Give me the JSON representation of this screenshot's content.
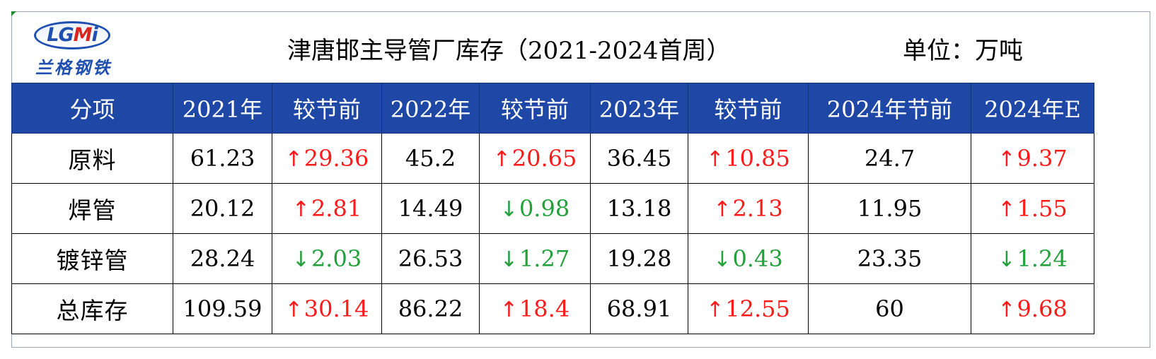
{
  "logo": {
    "letters_a": "LG",
    "letters_b": "M",
    "letters_c": "i",
    "cn": "兰格钢铁"
  },
  "title": "津唐邯主导管厂库存（2021-2024首周）",
  "unit": "单位：万吨",
  "colors": {
    "header_bg": "#1f48a6",
    "up": "#ff1a1a",
    "down": "#22a03a"
  },
  "headers": [
    "分项",
    "2021年",
    "较节前",
    "2022年",
    "较节前",
    "2023年",
    "较节前",
    "2024年节前",
    "2024年E"
  ],
  "rows": [
    {
      "label": "原料",
      "cells": [
        {
          "text": "61.23"
        },
        {
          "text": "29.36",
          "arrow": "↑",
          "dir": "up"
        },
        {
          "text": "45.2"
        },
        {
          "text": "20.65",
          "arrow": "↑",
          "dir": "up"
        },
        {
          "text": "36.45"
        },
        {
          "text": "10.85",
          "arrow": "↑",
          "dir": "up"
        },
        {
          "text": "24.7"
        },
        {
          "text": "9.37",
          "arrow": "↑",
          "dir": "up"
        }
      ]
    },
    {
      "label": "焊管",
      "cells": [
        {
          "text": "20.12"
        },
        {
          "text": "2.81",
          "arrow": "↑",
          "dir": "up"
        },
        {
          "text": "14.49"
        },
        {
          "text": "0.98",
          "arrow": "↓",
          "dir": "down"
        },
        {
          "text": "13.18"
        },
        {
          "text": "2.13",
          "arrow": "↑",
          "dir": "up"
        },
        {
          "text": "11.95"
        },
        {
          "text": "1.55",
          "arrow": "↑",
          "dir": "up"
        }
      ]
    },
    {
      "label": "镀锌管",
      "cells": [
        {
          "text": "28.24"
        },
        {
          "text": "2.03",
          "arrow": "↓",
          "dir": "down"
        },
        {
          "text": "26.53"
        },
        {
          "text": "1.27",
          "arrow": "↓",
          "dir": "down"
        },
        {
          "text": "19.28"
        },
        {
          "text": "0.43",
          "arrow": "↓",
          "dir": "down"
        },
        {
          "text": "23.35"
        },
        {
          "text": "1.24",
          "arrow": "↓",
          "dir": "down"
        }
      ]
    },
    {
      "label": "总库存",
      "cells": [
        {
          "text": "109.59"
        },
        {
          "text": "30.14",
          "arrow": "↑",
          "dir": "up"
        },
        {
          "text": "86.22"
        },
        {
          "text": "18.4",
          "arrow": "↑",
          "dir": "up"
        },
        {
          "text": "68.91"
        },
        {
          "text": "12.55",
          "arrow": "↑",
          "dir": "up"
        },
        {
          "text": "60"
        },
        {
          "text": "9.68",
          "arrow": "↑",
          "dir": "up"
        }
      ]
    }
  ]
}
